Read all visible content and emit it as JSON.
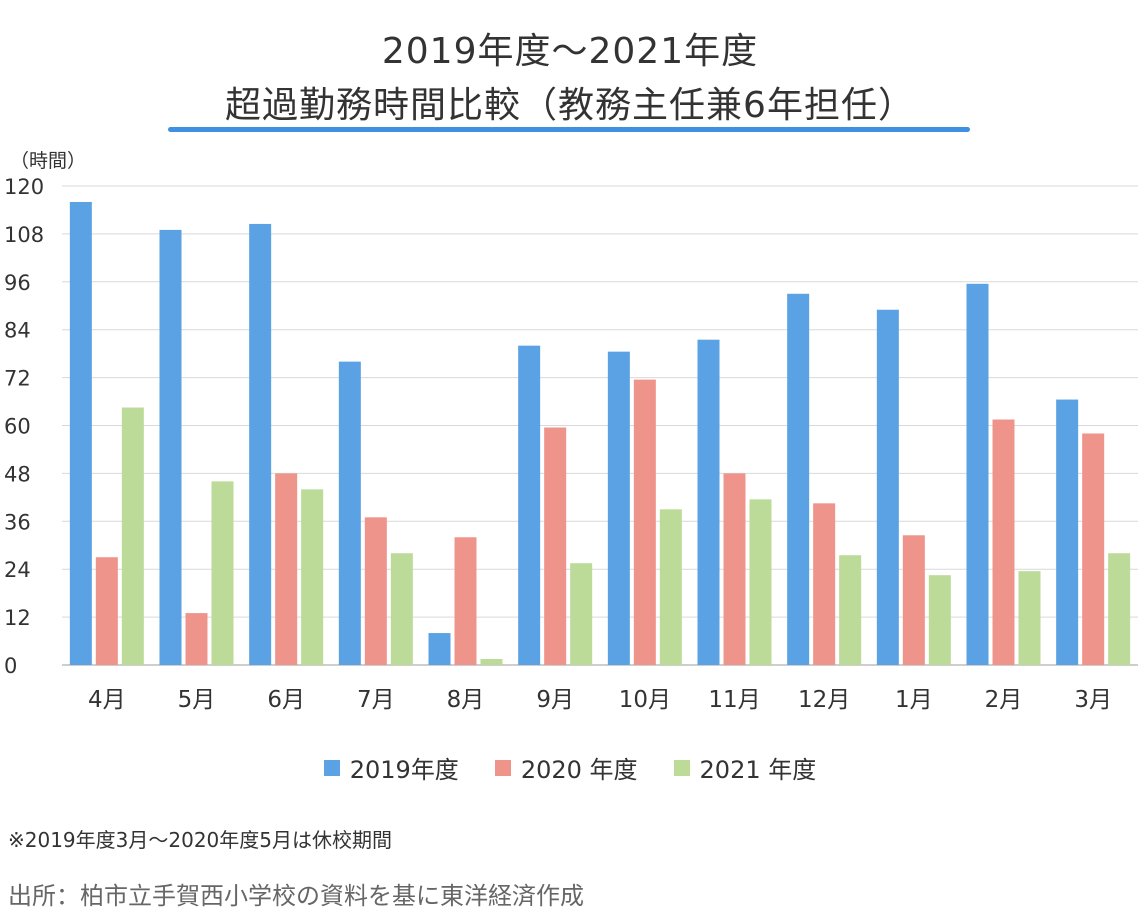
{
  "header": {
    "title_line1": "2019年度～2021年度",
    "title_line2": "超過勤務時間比較（教務主任兼6年担任）",
    "accent_color": "#3f90e0"
  },
  "chart_data": {
    "type": "bar",
    "unit_label": "（時間）",
    "categories": [
      "4月",
      "5月",
      "6月",
      "7月",
      "8月",
      "9月",
      "10月",
      "11月",
      "12月",
      "1月",
      "2月",
      "3月"
    ],
    "series": [
      {
        "name": "2019年度",
        "color": "#5aa2e3",
        "values": [
          116,
          109,
          110.5,
          76,
          8,
          80,
          78.5,
          81.5,
          93,
          89,
          95.5,
          66.5
        ]
      },
      {
        "name": "2020 年度",
        "color": "#ee948b",
        "values": [
          27,
          13,
          48,
          37,
          32,
          59.5,
          71.5,
          48,
          40.5,
          32.5,
          61.5,
          58
        ]
      },
      {
        "name": "2021 年度",
        "color": "#bcda98",
        "values": [
          64.5,
          46,
          44,
          28,
          1.5,
          25.5,
          39,
          41.5,
          27.5,
          22.5,
          23.5,
          28
        ]
      }
    ],
    "ylim": [
      0,
      120
    ],
    "yticks": [
      0,
      12,
      24,
      36,
      48,
      60,
      72,
      84,
      96,
      108,
      120
    ],
    "grid": true,
    "legend_position": "bottom"
  },
  "footer": {
    "note": "※2019年度3月～2020年度5月は休校期間",
    "source": "出所：柏市立手賀西小学校の資料を基に東洋経済作成"
  }
}
